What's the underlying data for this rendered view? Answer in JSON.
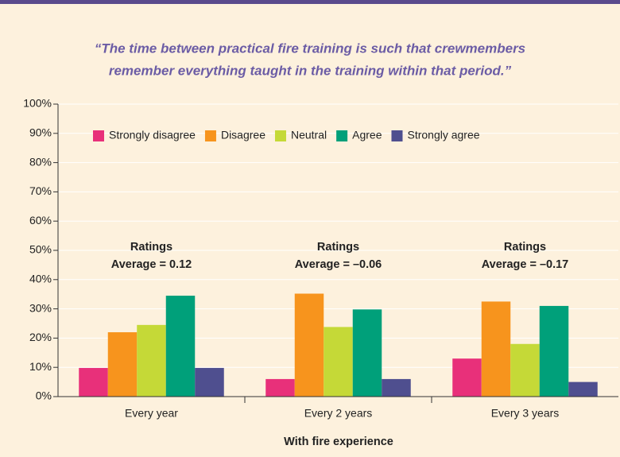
{
  "chart_data": {
    "type": "bar",
    "title": [
      "“The time between practical fire training is such that crewmembers",
      "remember everything taught in the training within that period.”"
    ],
    "x_label": "With fire experience",
    "categories": [
      "Every year",
      "Every 2 years",
      "Every 3 years"
    ],
    "series": [
      {
        "name": "Strongly disagree",
        "color": "#e8307a",
        "values": [
          9.8,
          6,
          13
        ]
      },
      {
        "name": "Disagree",
        "color": "#f7941d",
        "values": [
          22,
          35.2,
          32.5
        ]
      },
      {
        "name": "Neutral",
        "color": "#c5d937",
        "values": [
          24.5,
          23.8,
          18
        ]
      },
      {
        "name": "Agree",
        "color": "#00a07a",
        "values": [
          34.5,
          29.8,
          31
        ]
      },
      {
        "name": "Strongly agree",
        "color": "#4f4f8f",
        "values": [
          9.8,
          6,
          5
        ]
      }
    ],
    "annotations": [
      [
        "Ratings",
        "Average = 0.12"
      ],
      [
        "Ratings",
        "Average = –0.06"
      ],
      [
        "Ratings",
        "Average = –0.17"
      ]
    ],
    "ylim": [
      0,
      100
    ],
    "yticks": [
      {
        "value": 0,
        "label": "0%"
      },
      {
        "value": 10,
        "label": "10%"
      },
      {
        "value": 20,
        "label": "20%"
      },
      {
        "value": 30,
        "label": "30%"
      },
      {
        "value": 40,
        "label": "40%"
      },
      {
        "value": 50,
        "label": "50%"
      },
      {
        "value": 60,
        "label": "60%"
      },
      {
        "value": 70,
        "label": "70%"
      },
      {
        "value": 80,
        "label": "80%"
      },
      {
        "value": 90,
        "label": "90%"
      },
      {
        "value": 100,
        "label": "100%"
      }
    ],
    "grid": true,
    "legend": "top"
  }
}
